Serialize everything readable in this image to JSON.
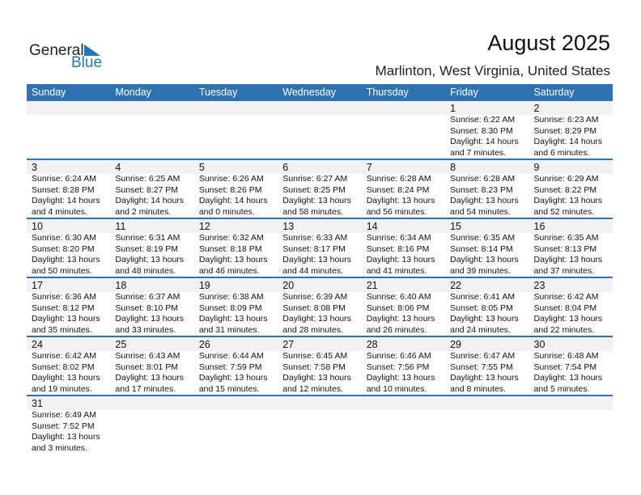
{
  "logo": {
    "text1": "General",
    "text2": "Blue"
  },
  "title": "August 2025",
  "location": "Marlinton, West Virginia, United States",
  "colors": {
    "accent": "#2f72b2",
    "day_band": "#f1f1f1"
  },
  "weekdays": [
    "Sunday",
    "Monday",
    "Tuesday",
    "Wednesday",
    "Thursday",
    "Friday",
    "Saturday"
  ],
  "days": [
    {
      "day": "1",
      "sunrise": "Sunrise: 6:22 AM",
      "sunset": "Sunset: 8:30 PM",
      "dl1": "Daylight: 14 hours",
      "dl2": "and 7 minutes."
    },
    {
      "day": "2",
      "sunrise": "Sunrise: 6:23 AM",
      "sunset": "Sunset: 8:29 PM",
      "dl1": "Daylight: 14 hours",
      "dl2": "and 6 minutes."
    },
    {
      "day": "3",
      "sunrise": "Sunrise: 6:24 AM",
      "sunset": "Sunset: 8:28 PM",
      "dl1": "Daylight: 14 hours",
      "dl2": "and 4 minutes."
    },
    {
      "day": "4",
      "sunrise": "Sunrise: 6:25 AM",
      "sunset": "Sunset: 8:27 PM",
      "dl1": "Daylight: 14 hours",
      "dl2": "and 2 minutes."
    },
    {
      "day": "5",
      "sunrise": "Sunrise: 6:26 AM",
      "sunset": "Sunset: 8:26 PM",
      "dl1": "Daylight: 14 hours",
      "dl2": "and 0 minutes."
    },
    {
      "day": "6",
      "sunrise": "Sunrise: 6:27 AM",
      "sunset": "Sunset: 8:25 PM",
      "dl1": "Daylight: 13 hours",
      "dl2": "and 58 minutes."
    },
    {
      "day": "7",
      "sunrise": "Sunrise: 6:28 AM",
      "sunset": "Sunset: 8:24 PM",
      "dl1": "Daylight: 13 hours",
      "dl2": "and 56 minutes."
    },
    {
      "day": "8",
      "sunrise": "Sunrise: 6:28 AM",
      "sunset": "Sunset: 8:23 PM",
      "dl1": "Daylight: 13 hours",
      "dl2": "and 54 minutes."
    },
    {
      "day": "9",
      "sunrise": "Sunrise: 6:29 AM",
      "sunset": "Sunset: 8:22 PM",
      "dl1": "Daylight: 13 hours",
      "dl2": "and 52 minutes."
    },
    {
      "day": "10",
      "sunrise": "Sunrise: 6:30 AM",
      "sunset": "Sunset: 8:20 PM",
      "dl1": "Daylight: 13 hours",
      "dl2": "and 50 minutes."
    },
    {
      "day": "11",
      "sunrise": "Sunrise: 6:31 AM",
      "sunset": "Sunset: 8:19 PM",
      "dl1": "Daylight: 13 hours",
      "dl2": "and 48 minutes."
    },
    {
      "day": "12",
      "sunrise": "Sunrise: 6:32 AM",
      "sunset": "Sunset: 8:18 PM",
      "dl1": "Daylight: 13 hours",
      "dl2": "and 46 minutes."
    },
    {
      "day": "13",
      "sunrise": "Sunrise: 6:33 AM",
      "sunset": "Sunset: 8:17 PM",
      "dl1": "Daylight: 13 hours",
      "dl2": "and 44 minutes."
    },
    {
      "day": "14",
      "sunrise": "Sunrise: 6:34 AM",
      "sunset": "Sunset: 8:16 PM",
      "dl1": "Daylight: 13 hours",
      "dl2": "and 41 minutes."
    },
    {
      "day": "15",
      "sunrise": "Sunrise: 6:35 AM",
      "sunset": "Sunset: 8:14 PM",
      "dl1": "Daylight: 13 hours",
      "dl2": "and 39 minutes."
    },
    {
      "day": "16",
      "sunrise": "Sunrise: 6:35 AM",
      "sunset": "Sunset: 8:13 PM",
      "dl1": "Daylight: 13 hours",
      "dl2": "and 37 minutes."
    },
    {
      "day": "17",
      "sunrise": "Sunrise: 6:36 AM",
      "sunset": "Sunset: 8:12 PM",
      "dl1": "Daylight: 13 hours",
      "dl2": "and 35 minutes."
    },
    {
      "day": "18",
      "sunrise": "Sunrise: 6:37 AM",
      "sunset": "Sunset: 8:10 PM",
      "dl1": "Daylight: 13 hours",
      "dl2": "and 33 minutes."
    },
    {
      "day": "19",
      "sunrise": "Sunrise: 6:38 AM",
      "sunset": "Sunset: 8:09 PM",
      "dl1": "Daylight: 13 hours",
      "dl2": "and 31 minutes."
    },
    {
      "day": "20",
      "sunrise": "Sunrise: 6:39 AM",
      "sunset": "Sunset: 8:08 PM",
      "dl1": "Daylight: 13 hours",
      "dl2": "and 28 minutes."
    },
    {
      "day": "21",
      "sunrise": "Sunrise: 6:40 AM",
      "sunset": "Sunset: 8:06 PM",
      "dl1": "Daylight: 13 hours",
      "dl2": "and 26 minutes."
    },
    {
      "day": "22",
      "sunrise": "Sunrise: 6:41 AM",
      "sunset": "Sunset: 8:05 PM",
      "dl1": "Daylight: 13 hours",
      "dl2": "and 24 minutes."
    },
    {
      "day": "23",
      "sunrise": "Sunrise: 6:42 AM",
      "sunset": "Sunset: 8:04 PM",
      "dl1": "Daylight: 13 hours",
      "dl2": "and 22 minutes."
    },
    {
      "day": "24",
      "sunrise": "Sunrise: 6:42 AM",
      "sunset": "Sunset: 8:02 PM",
      "dl1": "Daylight: 13 hours",
      "dl2": "and 19 minutes."
    },
    {
      "day": "25",
      "sunrise": "Sunrise: 6:43 AM",
      "sunset": "Sunset: 8:01 PM",
      "dl1": "Daylight: 13 hours",
      "dl2": "and 17 minutes."
    },
    {
      "day": "26",
      "sunrise": "Sunrise: 6:44 AM",
      "sunset": "Sunset: 7:59 PM",
      "dl1": "Daylight: 13 hours",
      "dl2": "and 15 minutes."
    },
    {
      "day": "27",
      "sunrise": "Sunrise: 6:45 AM",
      "sunset": "Sunset: 7:58 PM",
      "dl1": "Daylight: 13 hours",
      "dl2": "and 12 minutes."
    },
    {
      "day": "28",
      "sunrise": "Sunrise: 6:46 AM",
      "sunset": "Sunset: 7:56 PM",
      "dl1": "Daylight: 13 hours",
      "dl2": "and 10 minutes."
    },
    {
      "day": "29",
      "sunrise": "Sunrise: 6:47 AM",
      "sunset": "Sunset: 7:55 PM",
      "dl1": "Daylight: 13 hours",
      "dl2": "and 8 minutes."
    },
    {
      "day": "30",
      "sunrise": "Sunrise: 6:48 AM",
      "sunset": "Sunset: 7:54 PM",
      "dl1": "Daylight: 13 hours",
      "dl2": "and 5 minutes."
    },
    {
      "day": "31",
      "sunrise": "Sunrise: 6:49 AM",
      "sunset": "Sunset: 7:52 PM",
      "dl1": "Daylight: 13 hours",
      "dl2": "and 3 minutes."
    }
  ]
}
